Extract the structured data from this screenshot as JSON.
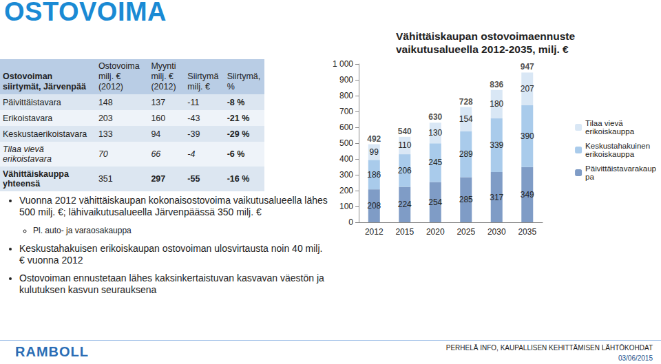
{
  "slide": {
    "title": "OSTOVOIMA",
    "table": {
      "header": [
        "Ostovoiman siirtymät, Järvenpää",
        "Ostovoima milj. € (2012)",
        "Myynti milj. € (2012)",
        "Siirtymä milj. €",
        "Siirtymä, %"
      ],
      "rows": [
        [
          "Päivittäistavara",
          "148",
          "137",
          "-11",
          "-8 %"
        ],
        [
          "Erikoistavara",
          "203",
          "160",
          "-43",
          "-21 %"
        ],
        [
          "Keskustaerikoistavara",
          "133",
          "94",
          "-39",
          "-29 %"
        ],
        [
          "Tilaa vievä erikoistavara",
          "70",
          "66",
          "-4",
          "-6 %"
        ],
        [
          "Vähittäiskauppa yhteensä",
          "351",
          "297",
          "-55",
          "-16 %"
        ]
      ]
    },
    "bullets": [
      {
        "text": "Vuonna 2012 vähittäiskaupan kokonaisostovoima vaikutusalueella lähes 500 milj. €; lähivaikutusalueella Järvenpäässä 350 milj. €",
        "sub": [
          "Pl. auto- ja varaosakauppa"
        ]
      },
      {
        "text": "Keskustahakuisen erikoiskaupan ostovoiman ulosvirtausta noin 40 milj. € vuonna 2012",
        "sub": []
      },
      {
        "text": "Ostovoiman ennustetaan lähes kaksinkertaistuvan kasvavan väestön ja kulutuksen kasvun seurauksena",
        "sub": []
      }
    ],
    "footer": {
      "logo": "RAMBOLL",
      "text": "PERHELÄ INFO, KAUPALLISEN KEHITTÄMISEN LÄHTÖKOHDAT",
      "date": "03/06/2015"
    }
  },
  "chart_data": {
    "type": "bar",
    "title": "Vähittäiskaupan ostovoimaennuste vaikutusalueella 2012-2035, milj. €",
    "categories": [
      "2012",
      "2015",
      "2020",
      "2025",
      "2030",
      "2035"
    ],
    "series": [
      {
        "name": "Päivittäistavarakauppa",
        "color": "#7f9cc6",
        "values": [
          208,
          224,
          254,
          285,
          317,
          349
        ]
      },
      {
        "name": "Keskustahakuinen erikoiskauppa",
        "color": "#a9cbeb",
        "values": [
          186,
          206,
          245,
          289,
          339,
          390
        ]
      },
      {
        "name": "Tilaa vievä erikoiskauppa",
        "color": "#d9e7f5",
        "values": [
          99,
          110,
          130,
          154,
          180,
          207
        ]
      }
    ],
    "totals": [
      492,
      540,
      630,
      728,
      836,
      947
    ],
    "stacked": true,
    "data_labels": true,
    "ylim": [
      0,
      1000
    ],
    "yticks": [
      0,
      100,
      200,
      300,
      400,
      500,
      600,
      700,
      800,
      900,
      {
        "value": 1000,
        "label": "1 000"
      }
    ],
    "grid": false,
    "legend": "right"
  }
}
